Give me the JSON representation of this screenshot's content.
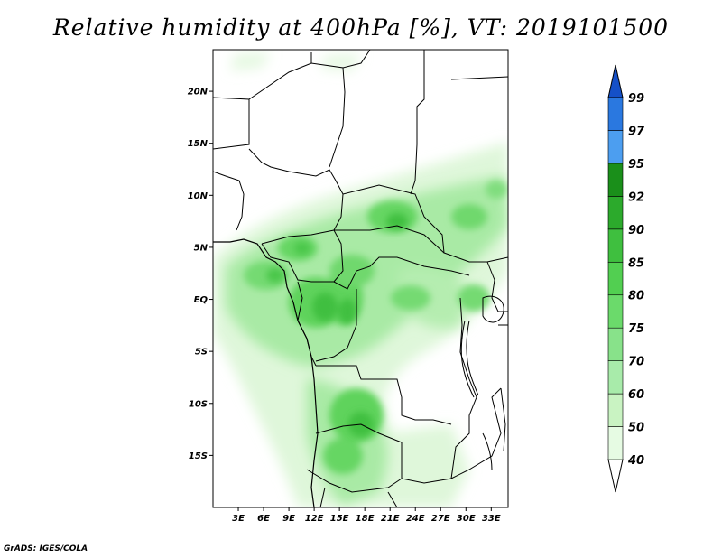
{
  "title": "Relative humidity at 400hPa [%], VT: 2019101500",
  "footer": "GrADS: IGES/COLA",
  "map": {
    "lon_range": [
      0,
      35
    ],
    "lat_range": [
      -20,
      24
    ],
    "x_ticks": [
      "3E",
      "6E",
      "9E",
      "12E",
      "15E",
      "18E",
      "21E",
      "24E",
      "27E",
      "30E",
      "33E"
    ],
    "y_ticks": [
      "20N",
      "15N",
      "10N",
      "5N",
      "EQ",
      "5S",
      "10S",
      "15S"
    ]
  },
  "colorbar": {
    "levels": [
      "40",
      "50",
      "60",
      "70",
      "75",
      "80",
      "85",
      "90",
      "92",
      "95",
      "97",
      "99"
    ],
    "colors": [
      "#ffffff",
      "#e6fbe3",
      "#c9f3c2",
      "#a8ebaa",
      "#88e28a",
      "#6bda6b",
      "#52cf51",
      "#3fbf3f",
      "#2caa2c",
      "#1a8f1a",
      "#4c9ef0",
      "#2a78e0",
      "#1550c8"
    ]
  },
  "colors": {
    "humid_light": "#d8f5d3",
    "humid_mid": "#9de69a",
    "humid_high": "#5ed35c",
    "humid_top": "#3bbd3b",
    "border": "#000000"
  }
}
